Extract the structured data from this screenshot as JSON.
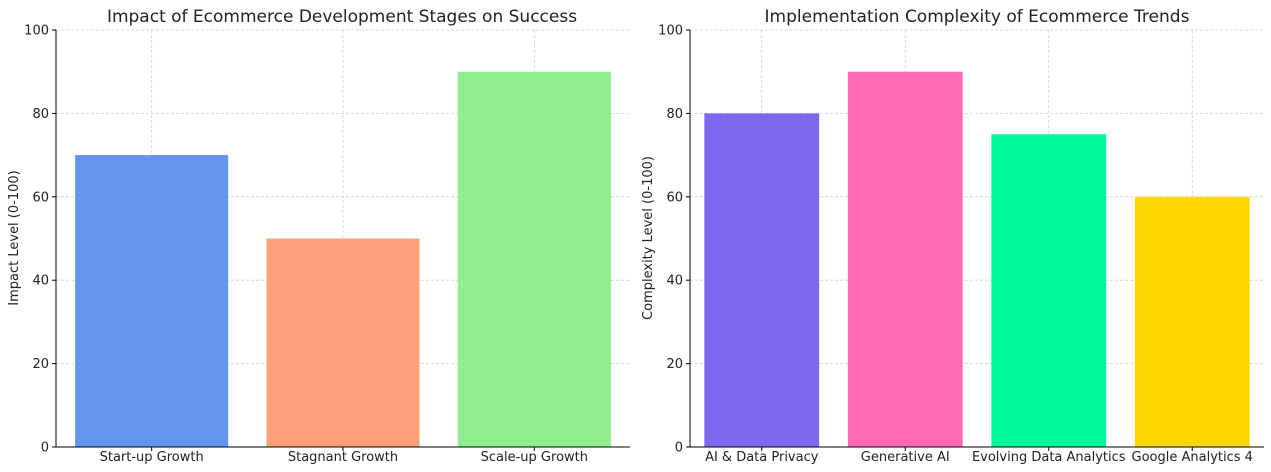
{
  "chart_data": [
    {
      "type": "bar",
      "title": "Impact of Ecommerce Development Stages on Success",
      "xlabel": "",
      "ylabel": "Impact Level (0-100)",
      "ylim": [
        0,
        100
      ],
      "yticks": [
        0,
        20,
        40,
        60,
        80,
        100
      ],
      "grid": true,
      "categories": [
        "Start-up Growth",
        "Stagnant Growth",
        "Scale-up Growth"
      ],
      "values": [
        70,
        50,
        90
      ],
      "colors": [
        "#6495ED",
        "#FFA07A",
        "#90EE90"
      ]
    },
    {
      "type": "bar",
      "title": "Implementation Complexity of Ecommerce Trends",
      "xlabel": "",
      "ylabel": "Complexity Level (0-100)",
      "ylim": [
        0,
        100
      ],
      "yticks": [
        0,
        20,
        40,
        60,
        80,
        100
      ],
      "grid": true,
      "categories": [
        "AI & Data Privacy",
        "Generative AI",
        "Evolving Data Analytics",
        "Google Analytics 4"
      ],
      "values": [
        80,
        90,
        75,
        60
      ],
      "colors": [
        "#7B68EE",
        "#FF69B4",
        "#00FA9A",
        "#FFD700"
      ]
    }
  ]
}
